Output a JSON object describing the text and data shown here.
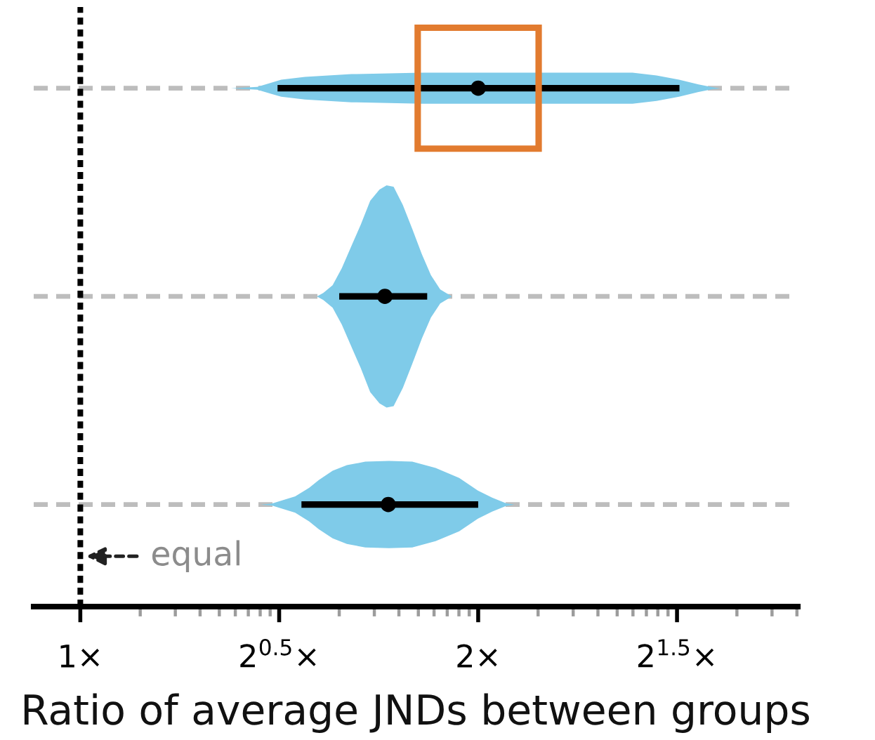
{
  "chart_data": {
    "type": "scatter",
    "orientation": "horizontal",
    "xlabel": "Ratio of average JNDs between groups",
    "categories": [
      null,
      null,
      null
    ],
    "log": "x",
    "xlim": [
      0.922,
      3.49
    ],
    "xticks": [
      {
        "value": 1,
        "label": "1×"
      },
      {
        "value": 1.11,
        "label": null
      },
      {
        "value": 1.18,
        "label": null
      },
      {
        "value": 1.232,
        "label": null
      },
      {
        "value": 1.274,
        "label": null
      },
      {
        "value": 1.31,
        "label": null
      },
      {
        "value": 1.34,
        "label": null
      },
      {
        "value": 1.368,
        "label": null
      },
      {
        "value": 1.392,
        "label": null
      },
      {
        "value": 1.414,
        "label": "2$^{0.5}$×"
      },
      {
        "value": 1.57,
        "label": null
      },
      {
        "value": 1.669,
        "label": null
      },
      {
        "value": 1.742,
        "label": null
      },
      {
        "value": 1.802,
        "label": null
      },
      {
        "value": 1.852,
        "label": null
      },
      {
        "value": 1.895,
        "label": null
      },
      {
        "value": 1.934,
        "label": null
      },
      {
        "value": 1.969,
        "label": null
      },
      {
        "value": 2,
        "label": "2×"
      },
      {
        "value": 2.22,
        "label": null
      },
      {
        "value": 2.36,
        "label": null
      },
      {
        "value": 2.464,
        "label": null
      },
      {
        "value": 2.548,
        "label": null
      },
      {
        "value": 2.619,
        "label": null
      },
      {
        "value": 2.681,
        "label": null
      },
      {
        "value": 2.735,
        "label": null
      },
      {
        "value": 2.784,
        "label": null
      },
      {
        "value": 2.828,
        "label": "2$^{1.5}$×"
      },
      {
        "value": 3.139,
        "label": null
      },
      {
        "value": 3.337,
        "label": null
      },
      {
        "value": 3.485,
        "label": null
      }
    ],
    "grid": "y",
    "tick_labels": "x",
    "ref_lines": [
      {
        "axis": "x",
        "value": 1,
        "label": "equal",
        "color": "#000000",
        "line_style": "dotted"
      }
    ],
    "series": [
      {
        "color": "#000000",
        "marker": "circle",
        "values": [
          2.0,
          1.7,
          1.71
        ],
        "errors": [
          [
            1.41,
            2.84
          ],
          [
            1.57,
            1.83
          ],
          [
            1.47,
            2.0
          ]
        ]
      }
    ]
  }
}
